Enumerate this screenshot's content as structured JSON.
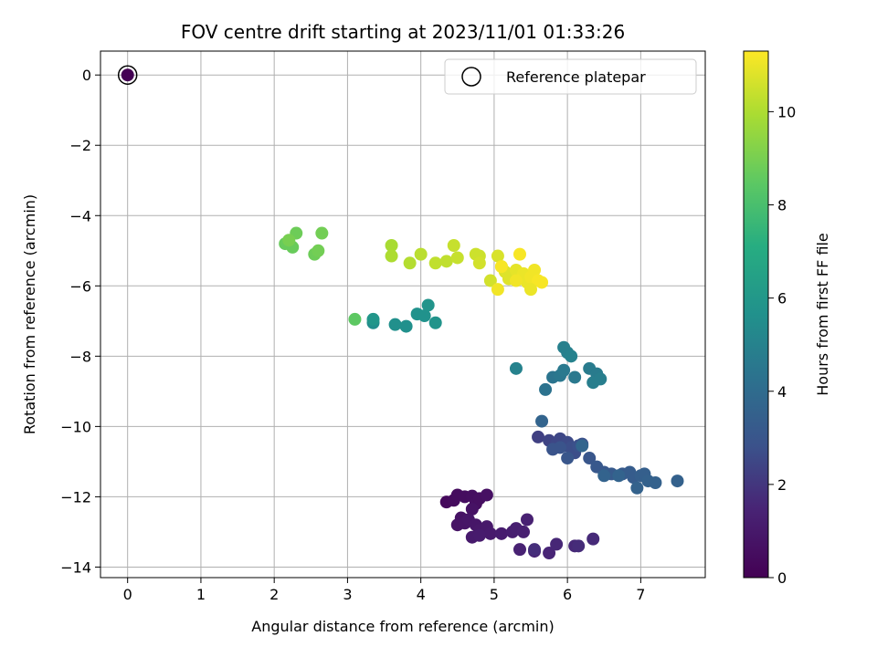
{
  "chart_data": {
    "type": "scatter",
    "title": "FOV centre drift starting at 2023/11/01 01:33:26",
    "xlabel": "Angular distance from reference (arcmin)",
    "ylabel": "Rotation from reference (arcmin)",
    "xlim": [
      -0.37,
      7.88
    ],
    "ylim": [
      -14.3,
      0.68
    ],
    "xticks": [
      0,
      1,
      2,
      3,
      4,
      5,
      6,
      7
    ],
    "yticks": [
      0,
      -2,
      -4,
      -6,
      -8,
      -10,
      -12,
      -14
    ],
    "grid": true,
    "legend": {
      "placement": "top-right",
      "entries": [
        "Reference platepar"
      ]
    },
    "colorbar": {
      "label": "Hours from first FF file",
      "range": [
        0,
        11.3
      ],
      "ticks": [
        0,
        2,
        4,
        6,
        8,
        10
      ],
      "colormap": "viridis"
    },
    "reference_point": {
      "x": 0,
      "y": 0
    },
    "points": [
      [
        0.0,
        0.0,
        0.0
      ],
      [
        4.35,
        -12.15,
        0.35
      ],
      [
        4.45,
        -12.1,
        0.4
      ],
      [
        4.5,
        -11.95,
        0.45
      ],
      [
        4.6,
        -12.0,
        0.5
      ],
      [
        4.7,
        -11.98,
        0.55
      ],
      [
        4.75,
        -12.2,
        0.6
      ],
      [
        4.8,
        -12.05,
        0.6
      ],
      [
        4.9,
        -11.95,
        0.65
      ],
      [
        4.7,
        -12.35,
        0.7
      ],
      [
        4.55,
        -12.6,
        0.7
      ],
      [
        4.5,
        -12.8,
        0.75
      ],
      [
        4.6,
        -12.75,
        0.8
      ],
      [
        4.65,
        -12.65,
        0.85
      ],
      [
        4.75,
        -12.8,
        0.9
      ],
      [
        4.8,
        -12.95,
        0.95
      ],
      [
        4.9,
        -12.85,
        1.0
      ],
      [
        4.95,
        -13.05,
        1.05
      ],
      [
        4.7,
        -13.15,
        1.05
      ],
      [
        4.8,
        -13.1,
        1.1
      ],
      [
        5.1,
        -13.05,
        1.15
      ],
      [
        5.25,
        -13.0,
        1.2
      ],
      [
        5.3,
        -12.9,
        1.25
      ],
      [
        5.4,
        -13.0,
        1.3
      ],
      [
        5.45,
        -12.65,
        1.35
      ],
      [
        5.35,
        -13.5,
        1.4
      ],
      [
        5.55,
        -13.55,
        1.45
      ],
      [
        5.75,
        -13.6,
        1.5
      ],
      [
        5.85,
        -13.35,
        1.55
      ],
      [
        6.1,
        -13.4,
        1.6
      ],
      [
        6.35,
        -13.2,
        1.65
      ],
      [
        6.15,
        -13.4,
        1.7
      ],
      [
        5.55,
        -13.5,
        1.75
      ],
      [
        5.6,
        -10.3,
        2.3
      ],
      [
        5.75,
        -10.4,
        2.4
      ],
      [
        5.85,
        -10.5,
        2.5
      ],
      [
        5.9,
        -10.35,
        2.5
      ],
      [
        5.95,
        -10.55,
        2.6
      ],
      [
        6.0,
        -10.45,
        2.6
      ],
      [
        6.05,
        -10.6,
        2.7
      ],
      [
        6.1,
        -10.75,
        2.7
      ],
      [
        6.15,
        -10.55,
        2.8
      ],
      [
        6.2,
        -10.5,
        2.8
      ],
      [
        5.8,
        -10.65,
        2.9
      ],
      [
        5.9,
        -10.6,
        2.9
      ],
      [
        6.0,
        -10.9,
        3.0
      ],
      [
        6.3,
        -10.9,
        3.0
      ],
      [
        6.4,
        -11.15,
        3.1
      ],
      [
        6.5,
        -11.3,
        3.1
      ],
      [
        6.6,
        -11.35,
        3.2
      ],
      [
        6.75,
        -11.35,
        3.2
      ],
      [
        6.85,
        -11.3,
        3.3
      ],
      [
        6.9,
        -11.45,
        3.3
      ],
      [
        7.0,
        -11.4,
        3.4
      ],
      [
        7.05,
        -11.35,
        3.4
      ],
      [
        7.1,
        -11.55,
        3.5
      ],
      [
        7.2,
        -11.6,
        3.5
      ],
      [
        7.5,
        -11.55,
        3.5
      ],
      [
        6.95,
        -11.75,
        3.55
      ],
      [
        6.5,
        -11.4,
        3.6
      ],
      [
        6.7,
        -11.4,
        3.6
      ],
      [
        5.65,
        -9.85,
        3.65
      ],
      [
        6.2,
        -10.55,
        3.7
      ],
      [
        5.7,
        -8.95,
        4.3
      ],
      [
        5.8,
        -8.6,
        4.4
      ],
      [
        5.9,
        -8.55,
        4.5
      ],
      [
        5.95,
        -8.4,
        4.6
      ],
      [
        6.1,
        -8.6,
        4.6
      ],
      [
        6.3,
        -8.35,
        4.7
      ],
      [
        6.4,
        -8.5,
        4.7
      ],
      [
        6.35,
        -8.75,
        4.8
      ],
      [
        6.45,
        -8.65,
        4.8
      ],
      [
        5.95,
        -7.75,
        4.9
      ],
      [
        6.0,
        -7.9,
        4.9
      ],
      [
        6.05,
        -8.0,
        5.0
      ],
      [
        5.3,
        -8.35,
        5.0
      ],
      [
        3.35,
        -7.05,
        5.5
      ],
      [
        3.65,
        -7.1,
        5.6
      ],
      [
        3.8,
        -7.15,
        5.6
      ],
      [
        3.95,
        -6.8,
        5.7
      ],
      [
        4.05,
        -6.85,
        5.7
      ],
      [
        4.1,
        -6.55,
        5.8
      ],
      [
        4.2,
        -7.05,
        5.8
      ],
      [
        3.35,
        -6.95,
        5.9
      ],
      [
        3.1,
        -6.95,
        8.5
      ],
      [
        2.2,
        -4.75,
        8.6
      ],
      [
        2.15,
        -4.8,
        8.7
      ],
      [
        2.25,
        -4.9,
        8.7
      ],
      [
        2.3,
        -4.5,
        8.8
      ],
      [
        2.55,
        -5.1,
        8.8
      ],
      [
        2.6,
        -5.0,
        8.9
      ],
      [
        2.65,
        -4.5,
        8.9
      ],
      [
        2.2,
        -4.7,
        9.0
      ],
      [
        3.6,
        -4.85,
        9.9
      ],
      [
        3.6,
        -5.15,
        10.0
      ],
      [
        3.85,
        -5.35,
        10.1
      ],
      [
        4.0,
        -5.1,
        10.2
      ],
      [
        4.2,
        -5.35,
        10.3
      ],
      [
        4.35,
        -5.3,
        10.3
      ],
      [
        4.45,
        -4.85,
        10.4
      ],
      [
        4.5,
        -5.2,
        10.4
      ],
      [
        4.75,
        -5.1,
        10.5
      ],
      [
        4.8,
        -5.15,
        10.5
      ],
      [
        4.8,
        -5.35,
        10.6
      ],
      [
        4.95,
        -5.85,
        10.6
      ],
      [
        5.05,
        -5.15,
        10.7
      ],
      [
        5.1,
        -5.45,
        10.7
      ],
      [
        5.15,
        -5.6,
        10.8
      ],
      [
        5.2,
        -5.8,
        10.8
      ],
      [
        5.3,
        -5.55,
        10.9
      ],
      [
        5.35,
        -5.7,
        10.9
      ],
      [
        5.4,
        -5.65,
        11.0
      ],
      [
        5.45,
        -5.9,
        11.0
      ],
      [
        5.5,
        -5.75,
        11.1
      ],
      [
        5.55,
        -5.55,
        11.1
      ],
      [
        5.6,
        -5.85,
        11.2
      ],
      [
        5.65,
        -5.9,
        11.2
      ],
      [
        5.35,
        -5.1,
        11.2
      ],
      [
        5.1,
        -5.45,
        11.2
      ],
      [
        5.05,
        -6.1,
        11.1
      ],
      [
        5.5,
        -6.1,
        11.0
      ],
      [
        5.3,
        -5.85,
        11.1
      ]
    ]
  }
}
